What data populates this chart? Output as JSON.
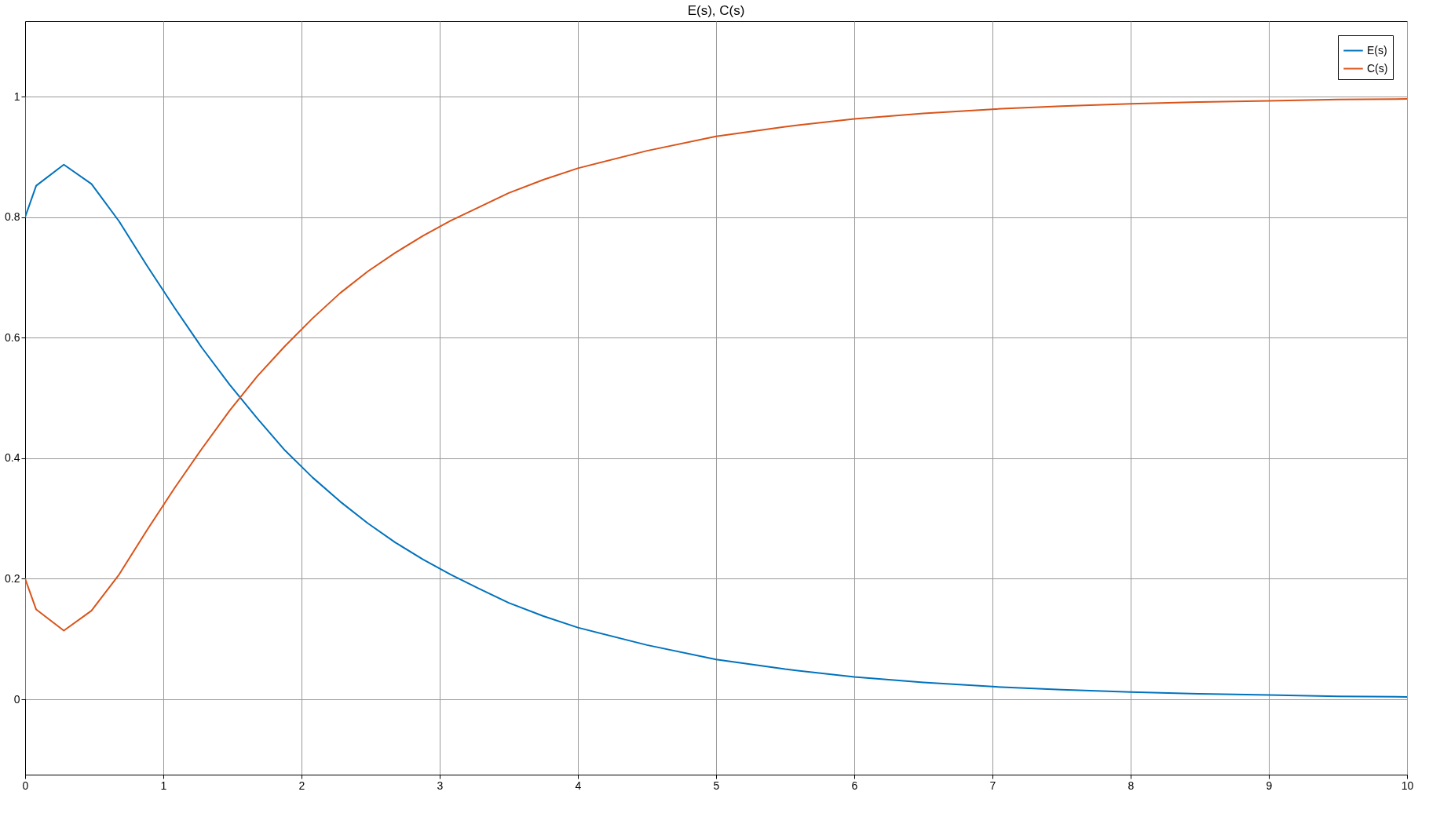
{
  "chart_data": {
    "type": "line",
    "title": "E(s), C(s)",
    "x": [
      0,
      0,
      0.08,
      0.28,
      0.48,
      0.68,
      0.88,
      1.08,
      1.28,
      1.48,
      1.68,
      1.88,
      2.08,
      2.28,
      2.48,
      2.68,
      2.88,
      3.08,
      3.28,
      3.5,
      3.75,
      4,
      4.5,
      5,
      5.5,
      6,
      6.5,
      7,
      7.5,
      8,
      8.5,
      9,
      9.5,
      10
    ],
    "series": [
      {
        "name": "E(s)",
        "color": "#0072bd",
        "values": [
          1,
          0.8,
          0.852,
          0.887,
          0.855,
          0.793,
          0.72,
          0.65,
          0.583,
          0.522,
          0.466,
          0.413,
          0.368,
          0.328,
          0.292,
          0.26,
          0.232,
          0.207,
          0.184,
          0.16,
          0.138,
          0.119,
          0.09,
          0.066,
          0.05,
          0.037,
          0.028,
          0.021,
          0.016,
          0.012,
          0.009,
          0.007,
          0.005,
          0.004
        ]
      },
      {
        "name": "C(s)",
        "color": "#d95319",
        "values": [
          0,
          0.2,
          0.149,
          0.114,
          0.147,
          0.207,
          0.28,
          0.35,
          0.416,
          0.479,
          0.536,
          0.586,
          0.632,
          0.674,
          0.71,
          0.741,
          0.769,
          0.794,
          0.816,
          0.84,
          0.862,
          0.881,
          0.91,
          0.934,
          0.95,
          0.963,
          0.972,
          0.979,
          0.984,
          0.988,
          0.991,
          0.993,
          0.995,
          0.996
        ]
      }
    ],
    "xlim": [
      0,
      10
    ],
    "xticks": [
      0,
      1,
      2,
      3,
      4,
      5,
      6,
      7,
      8,
      9,
      10
    ],
    "ylim": [
      -0.125,
      1.125
    ],
    "yticks": [
      0,
      0.2,
      0.4,
      0.6,
      0.8,
      1
    ],
    "grid": true,
    "legend": "top right",
    "marker": "none",
    "line_style": "solid"
  }
}
